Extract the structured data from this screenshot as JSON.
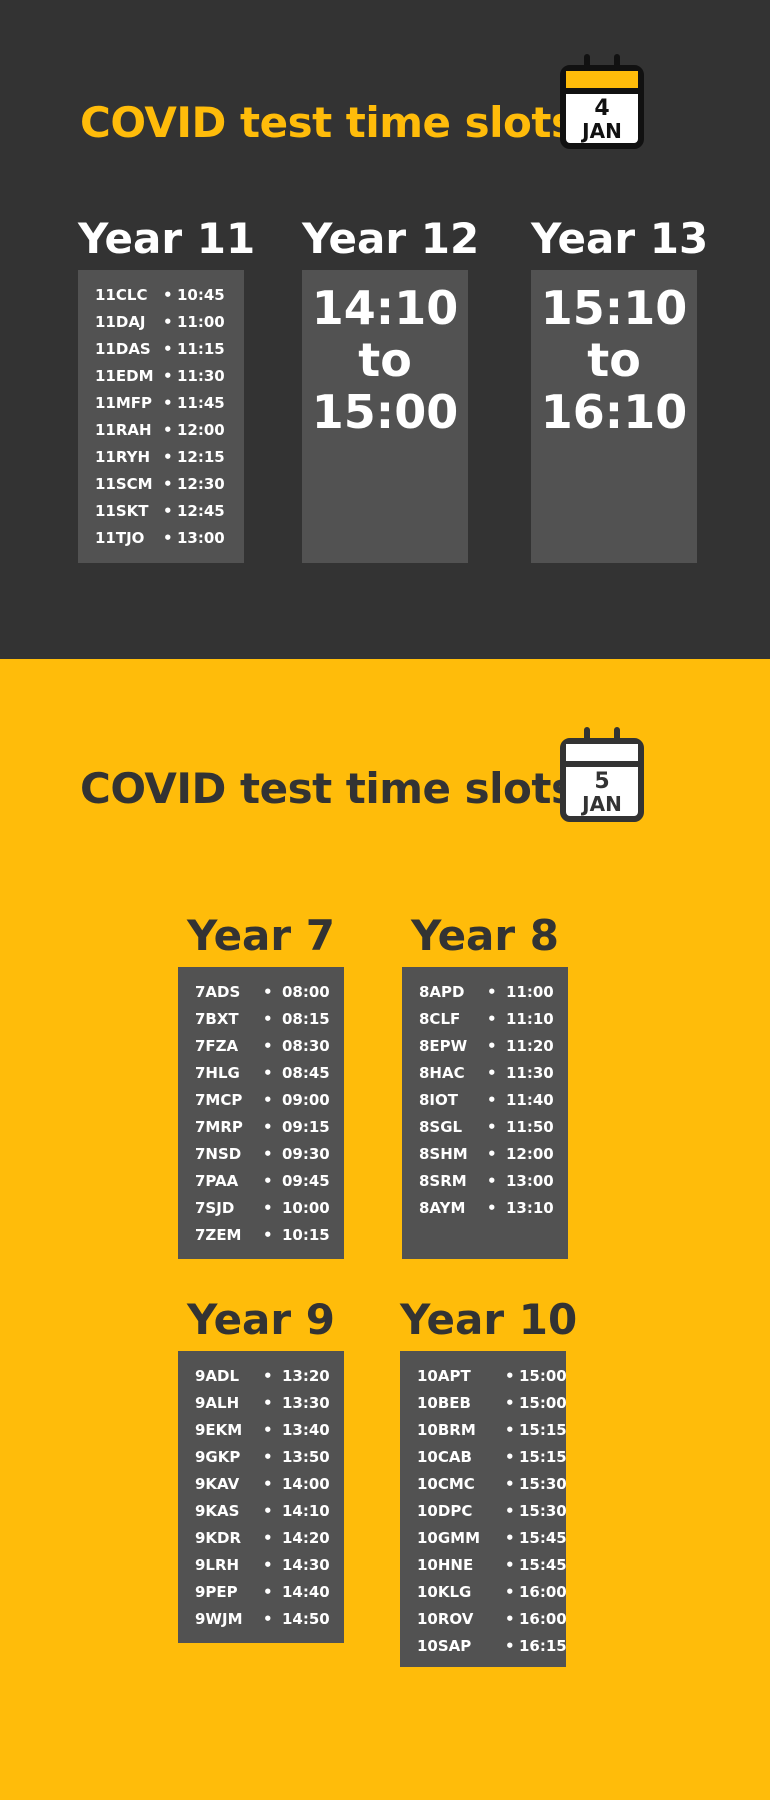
{
  "colors": {
    "dark_bg": "#333333",
    "accent_yellow": "#FFBC0A",
    "panel": "#525252"
  },
  "day1": {
    "title": "COVID test time slots",
    "calendar": {
      "icon": "calendar-icon",
      "day": "4",
      "month": "JAN"
    },
    "year11": {
      "heading": "Year 11",
      "rows": [
        {
          "cls": "11CLC",
          "time": "10:45"
        },
        {
          "cls": "11DAJ",
          "time": "11:00"
        },
        {
          "cls": "11DAS",
          "time": "11:15"
        },
        {
          "cls": "11EDM",
          "time": "11:30"
        },
        {
          "cls": "11MFP",
          "time": "11:45"
        },
        {
          "cls": "11RAH",
          "time": "12:00"
        },
        {
          "cls": "11RYH",
          "time": "12:15"
        },
        {
          "cls": "11SCM",
          "time": "12:30"
        },
        {
          "cls": "11SKT",
          "time": "12:45"
        },
        {
          "cls": "11TJO",
          "time": "13:00"
        }
      ]
    },
    "year12": {
      "heading": "Year 12",
      "from": "14:10",
      "to_word": "to",
      "to": "15:00"
    },
    "year13": {
      "heading": "Year 13",
      "from": "15:10",
      "to_word": "to",
      "to": "16:10"
    }
  },
  "day2": {
    "title": "COVID test time slots",
    "calendar": {
      "icon": "calendar-icon",
      "day": "5",
      "month": "JAN"
    },
    "year7": {
      "heading": "Year 7",
      "rows": [
        {
          "cls": "7ADS",
          "time": "08:00"
        },
        {
          "cls": "7BXT",
          "time": "08:15"
        },
        {
          "cls": "7FZA",
          "time": "08:30"
        },
        {
          "cls": "7HLG",
          "time": "08:45"
        },
        {
          "cls": "7MCP",
          "time": "09:00"
        },
        {
          "cls": "7MRP",
          "time": "09:15"
        },
        {
          "cls": "7NSD",
          "time": "09:30"
        },
        {
          "cls": "7PAA",
          "time": "09:45"
        },
        {
          "cls": "7SJD",
          "time": "10:00"
        },
        {
          "cls": "7ZEM",
          "time": "10:15"
        }
      ]
    },
    "year8": {
      "heading": "Year 8",
      "rows": [
        {
          "cls": "8APD",
          "time": "11:00"
        },
        {
          "cls": "8CLF",
          "time": "11:10"
        },
        {
          "cls": "8EPW",
          "time": "11:20"
        },
        {
          "cls": "8HAC",
          "time": "11:30"
        },
        {
          "cls": "8IOT",
          "time": "11:40"
        },
        {
          "cls": "8SGL",
          "time": "11:50"
        },
        {
          "cls": "8SHM",
          "time": "12:00"
        },
        {
          "cls": "8SRM",
          "time": "13:00"
        },
        {
          "cls": "8AYM",
          "time": "13:10"
        }
      ]
    },
    "year9": {
      "heading": "Year 9",
      "rows": [
        {
          "cls": "9ADL",
          "time": "13:20"
        },
        {
          "cls": "9ALH",
          "time": "13:30"
        },
        {
          "cls": "9EKM",
          "time": "13:40"
        },
        {
          "cls": "9GKP",
          "time": "13:50"
        },
        {
          "cls": "9KAV",
          "time": "14:00"
        },
        {
          "cls": "9KAS",
          "time": "14:10"
        },
        {
          "cls": "9KDR",
          "time": "14:20"
        },
        {
          "cls": "9LRH",
          "time": "14:30"
        },
        {
          "cls": "9PEP",
          "time": "14:40"
        },
        {
          "cls": "9WJM",
          "time": "14:50"
        }
      ]
    },
    "year10": {
      "heading": "Year 10",
      "rows": [
        {
          "cls": "10APT",
          "time": "15:00"
        },
        {
          "cls": "10BEB",
          "time": "15:00"
        },
        {
          "cls": "10BRM",
          "time": "15:15"
        },
        {
          "cls": "10CAB",
          "time": "15:15"
        },
        {
          "cls": "10CMC",
          "time": "15:30"
        },
        {
          "cls": "10DPC",
          "time": "15:30"
        },
        {
          "cls": "10GMM",
          "time": "15:45"
        },
        {
          "cls": "10HNE",
          "time": "15:45"
        },
        {
          "cls": "10KLG",
          "time": "16:00"
        },
        {
          "cls": "10ROV",
          "time": "16:00"
        },
        {
          "cls": "10SAP",
          "time": "16:15"
        }
      ]
    }
  }
}
